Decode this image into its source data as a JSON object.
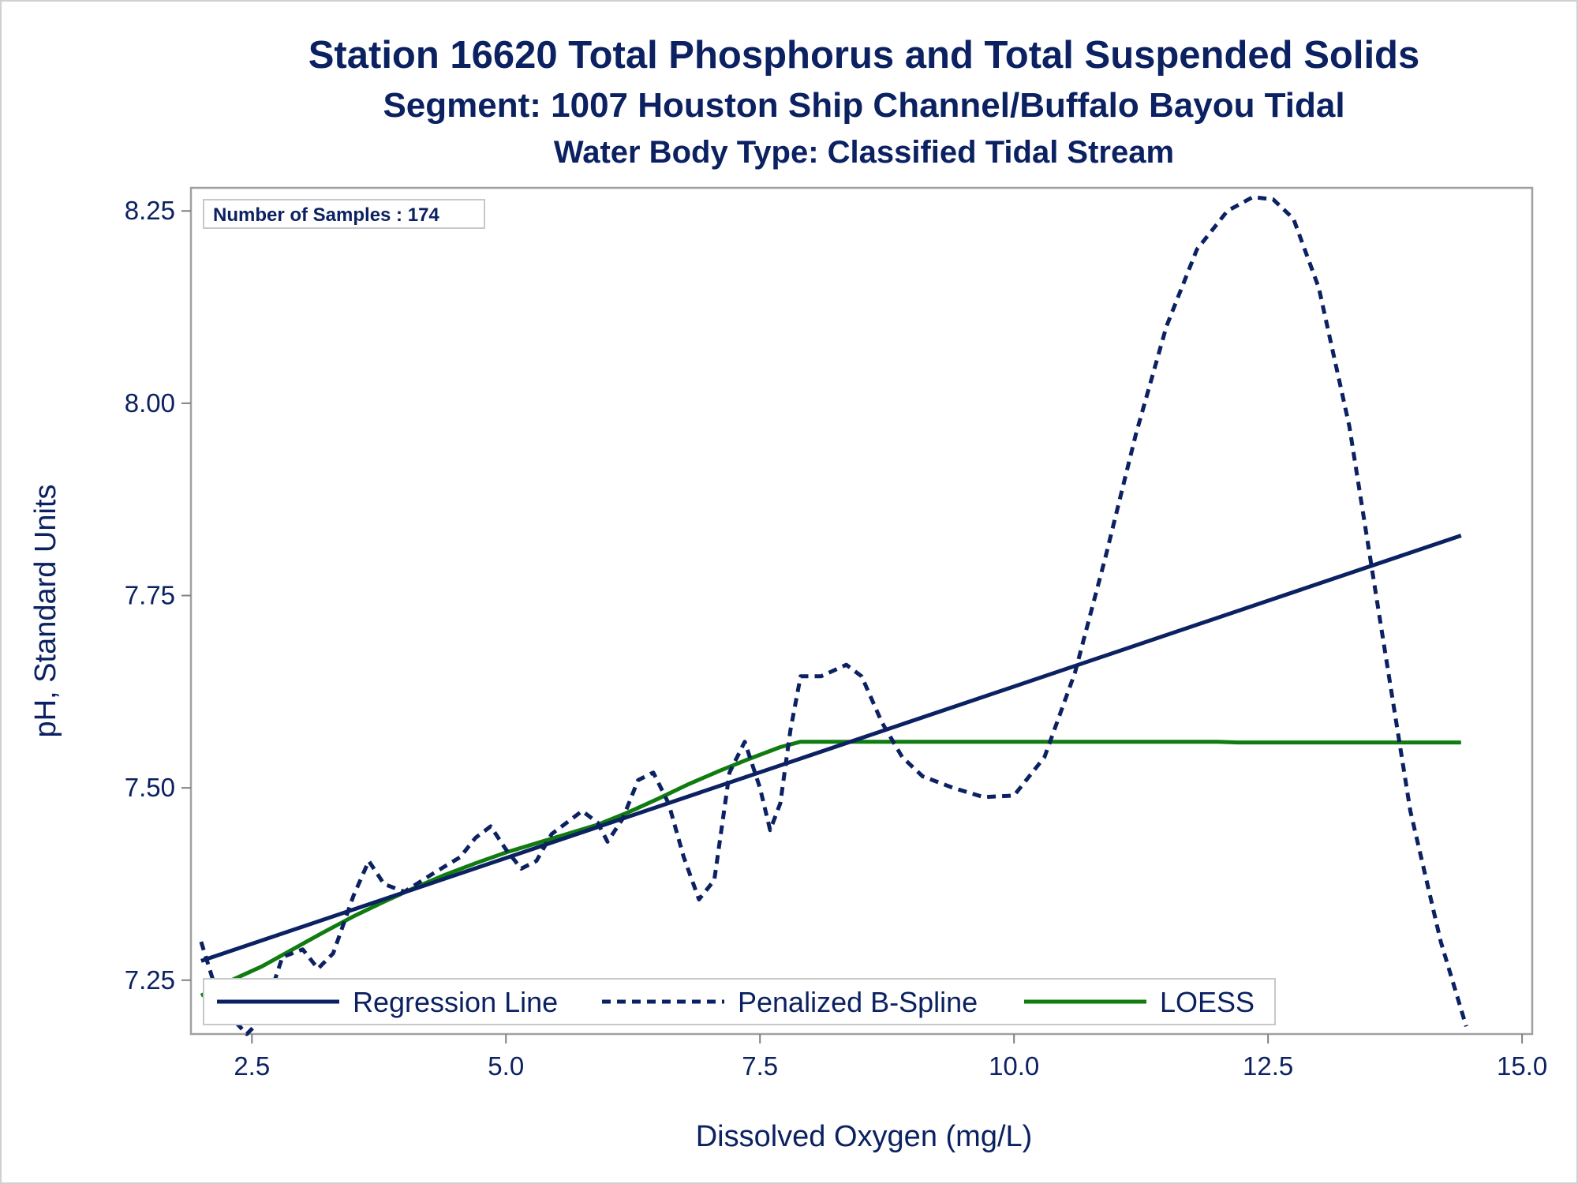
{
  "chart_data": {
    "type": "line",
    "title": "Station 16620  Total Phosphorus and Total Suspended Solids",
    "subtitle": "Segment: 1007  Houston Ship Channel/Buffalo Bayou Tidal",
    "subtitle2": "Water Body Type: Classified Tidal Stream",
    "xlabel": "Dissolved Oxygen (mg/L)",
    "ylabel": "pH, Standard Units",
    "xlim": [
      1.9,
      15.1
    ],
    "ylim": [
      7.18,
      8.28
    ],
    "x_ticks": [
      2.5,
      5.0,
      7.5,
      10.0,
      12.5,
      15.0
    ],
    "x_tick_labels": [
      "2.5",
      "5.0",
      "7.5",
      "10.0",
      "12.5",
      "15.0"
    ],
    "y_ticks": [
      7.25,
      7.5,
      7.75,
      8.0,
      8.25
    ],
    "y_tick_labels": [
      "7.25",
      "7.50",
      "7.75",
      "8.00",
      "8.25"
    ],
    "grid": false,
    "legend_position": "bottom-inside",
    "inset_text": "Number of Samples : 174",
    "series": [
      {
        "name": "Regression Line",
        "style": "solid",
        "color": "#0b2161",
        "x": [
          2.0,
          14.4
        ],
        "y": [
          7.275,
          7.828
        ]
      },
      {
        "name": "Penalized B-Spline",
        "style": "dashed",
        "color": "#0b2161",
        "x": [
          2.0,
          2.2,
          2.45,
          2.6,
          2.8,
          3.0,
          3.15,
          3.3,
          3.5,
          3.65,
          3.8,
          4.0,
          4.3,
          4.55,
          4.7,
          4.85,
          5.0,
          5.15,
          5.3,
          5.45,
          5.55,
          5.75,
          5.9,
          6.0,
          6.15,
          6.3,
          6.45,
          6.6,
          6.75,
          6.9,
          7.05,
          7.2,
          7.35,
          7.5,
          7.6,
          7.7,
          7.8,
          7.9,
          8.1,
          8.35,
          8.5,
          8.7,
          8.9,
          9.1,
          9.4,
          9.7,
          10.0,
          10.3,
          10.6,
          10.9,
          11.2,
          11.5,
          11.8,
          12.1,
          12.35,
          12.55,
          12.75,
          13.0,
          13.3,
          13.6,
          13.9,
          14.2,
          14.45
        ],
        "y": [
          7.3,
          7.215,
          7.18,
          7.2,
          7.28,
          7.29,
          7.265,
          7.285,
          7.36,
          7.405,
          7.375,
          7.365,
          7.39,
          7.41,
          7.435,
          7.45,
          7.42,
          7.395,
          7.405,
          7.44,
          7.45,
          7.47,
          7.455,
          7.43,
          7.46,
          7.51,
          7.52,
          7.48,
          7.41,
          7.355,
          7.38,
          7.52,
          7.56,
          7.5,
          7.445,
          7.48,
          7.575,
          7.645,
          7.645,
          7.66,
          7.645,
          7.585,
          7.54,
          7.515,
          7.5,
          7.488,
          7.49,
          7.54,
          7.65,
          7.8,
          7.96,
          8.1,
          8.2,
          8.25,
          8.268,
          8.265,
          8.24,
          8.15,
          7.97,
          7.72,
          7.47,
          7.3,
          7.19
        ]
      },
      {
        "name": "LOESS",
        "style": "solid",
        "color": "#107c10",
        "x": [
          2.0,
          2.3,
          2.6,
          2.9,
          3.2,
          3.5,
          3.8,
          4.1,
          4.4,
          4.7,
          5.0,
          5.3,
          5.6,
          5.9,
          6.2,
          6.5,
          6.8,
          7.1,
          7.4,
          7.7,
          7.9,
          8.2,
          8.5,
          9.0,
          10.0,
          11.0,
          12.0,
          12.2,
          13.0,
          14.0,
          14.4
        ],
        "y": [
          7.23,
          7.25,
          7.268,
          7.29,
          7.312,
          7.333,
          7.352,
          7.37,
          7.387,
          7.402,
          7.416,
          7.428,
          7.44,
          7.452,
          7.468,
          7.486,
          7.505,
          7.522,
          7.538,
          7.553,
          7.56,
          7.56,
          7.56,
          7.56,
          7.56,
          7.56,
          7.56,
          7.559,
          7.559,
          7.559,
          7.559
        ]
      }
    ]
  }
}
